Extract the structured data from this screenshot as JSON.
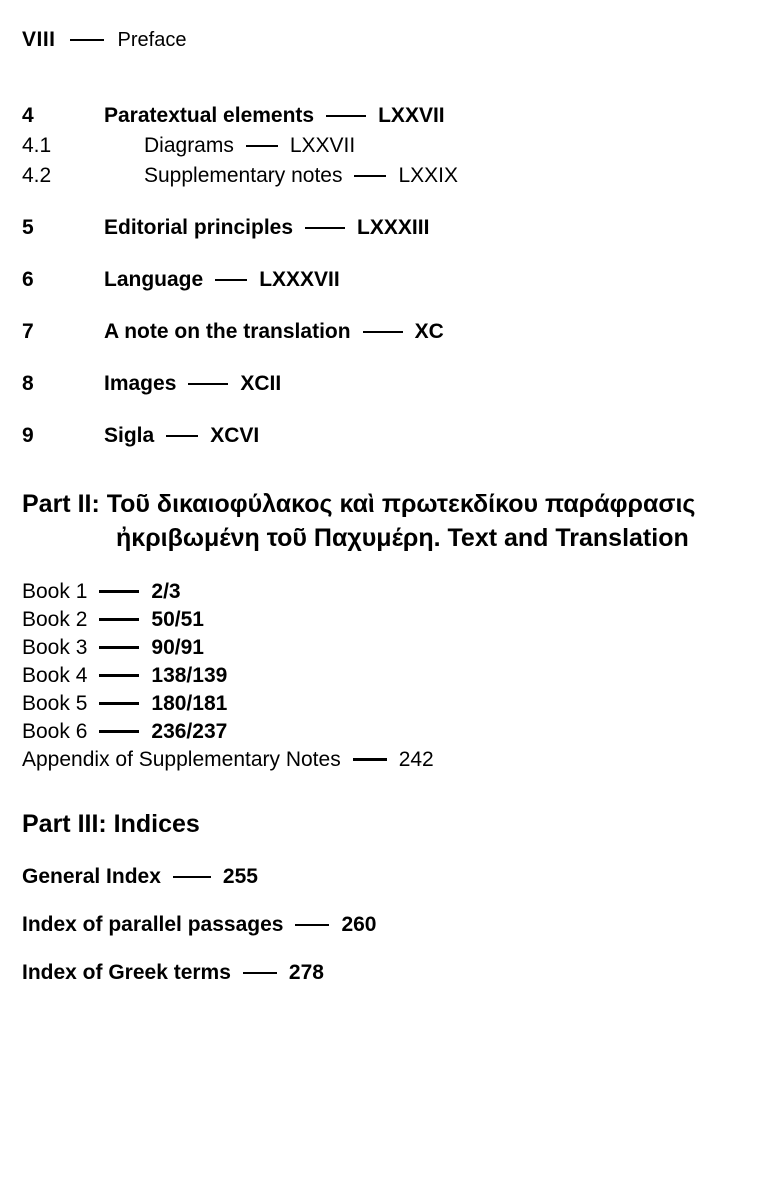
{
  "header": {
    "roman": "VIII",
    "label": "Preface",
    "ruleWidth": 34
  },
  "section1": [
    {
      "num": "4",
      "title": "Paratextual elements",
      "page": "LXXVII",
      "bold": true,
      "sub": false,
      "ruleWidth": 40
    },
    {
      "num": "4.1",
      "title": "Diagrams",
      "page": "LXXVII",
      "bold": true,
      "sub": true,
      "ruleWidth": 32
    },
    {
      "num": "4.2",
      "title": "Supplementary notes",
      "page": "LXXIX",
      "bold": true,
      "sub": true,
      "ruleWidth": 32
    },
    {
      "spacer": true
    },
    {
      "num": "5",
      "title": "Editorial principles",
      "page": "LXXXIII",
      "bold": true,
      "sub": false,
      "ruleWidth": 40
    },
    {
      "spacer": true
    },
    {
      "num": "6",
      "title": "Language",
      "page": "LXXXVII",
      "bold": true,
      "sub": false,
      "ruleWidth": 32
    },
    {
      "spacer": true
    },
    {
      "num": "7",
      "title": "A note on the translation",
      "page": "XC",
      "bold": true,
      "sub": false,
      "ruleWidth": 40
    },
    {
      "spacer": true
    },
    {
      "num": "8",
      "title": "Images",
      "page": "XCII",
      "bold": true,
      "sub": false,
      "ruleWidth": 40
    },
    {
      "spacer": true
    },
    {
      "num": "9",
      "title": "Sigla",
      "page": "XCVI",
      "bold": true,
      "sub": false,
      "ruleWidth": 32
    }
  ],
  "part2": {
    "line1": "Part II: Τοῦ δικαιοφύλακος καὶ πρωτεκδίκου παράφρασις",
    "line2": "ἠκριβωμένη τοῦ Παχυμέρη. Text and Translation"
  },
  "books": [
    {
      "label": "Book 1",
      "page": "2/3",
      "ruleWidth": 40
    },
    {
      "label": "Book 2",
      "page": "50/51",
      "ruleWidth": 40
    },
    {
      "label": "Book 3",
      "page": "90/91",
      "ruleWidth": 40
    },
    {
      "label": "Book 4",
      "page": "138/139",
      "ruleWidth": 40
    },
    {
      "label": "Book 5",
      "page": "180/181",
      "ruleWidth": 40
    },
    {
      "label": "Book 6",
      "page": "236/237",
      "ruleWidth": 40
    }
  ],
  "appendix": {
    "label": "Appendix of Supplementary Notes",
    "page": "242",
    "ruleWidth": 34
  },
  "part3": {
    "title": "Part III: Indices"
  },
  "indices": [
    {
      "label": "General Index",
      "page": "255",
      "ruleWidth": 38
    },
    {
      "label": "Index of parallel passages",
      "page": "260",
      "ruleWidth": 34
    },
    {
      "label": "Index of Greek terms",
      "page": "278",
      "ruleWidth": 34
    }
  ]
}
